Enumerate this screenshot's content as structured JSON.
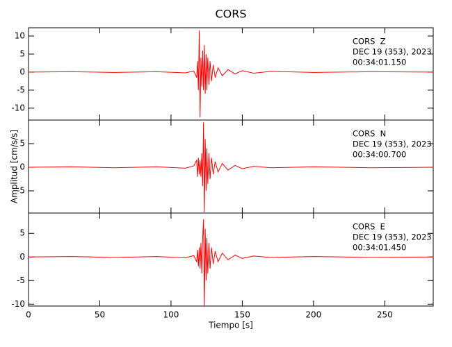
{
  "title": "CORS",
  "xlabel": "Tiempo [s]",
  "ylabel": "Amplitud [cm/s/s]",
  "chart_data": [
    {
      "type": "line",
      "annotations": [
        "CORS  Z",
        "DEC 19 (353), 2023",
        "00:34:01.150"
      ],
      "xlim": [
        0,
        284
      ],
      "xticks": [
        0,
        50,
        100,
        150,
        200,
        250
      ],
      "ylim": [
        -13.3,
        12.3
      ],
      "yticks": [
        -10,
        -5,
        0,
        5,
        10
      ],
      "series": [
        {
          "color": "#ff0000",
          "x": [
            0,
            30,
            60,
            90,
            110,
            116,
            118,
            118.6,
            119.2,
            119.8,
            120.4,
            121,
            121.6,
            122.2,
            122.8,
            123.4,
            124,
            124.6,
            125.2,
            125.8,
            126.6,
            127.4,
            128.4,
            129.6,
            131,
            133,
            136,
            140,
            145,
            150,
            158,
            170,
            200,
            240,
            284
          ],
          "values": [
            0,
            0.1,
            -0.1,
            0.1,
            -0.2,
            0.3,
            -1.5,
            3,
            -5,
            11.5,
            -12.5,
            4,
            -4,
            6,
            -5,
            7.5,
            -6,
            5,
            -5,
            4,
            -3.5,
            3,
            -2.5,
            2,
            -1.5,
            1.2,
            -1,
            0.7,
            -0.5,
            0.4,
            -0.3,
            0.2,
            -0.1,
            0.1,
            0
          ]
        }
      ]
    },
    {
      "type": "line",
      "annotations": [
        "CORS  N",
        "DEC 19 (353), 2023",
        "00:34:00.700"
      ],
      "xlim": [
        0,
        284
      ],
      "xticks": [
        0,
        50,
        100,
        150,
        200,
        250
      ],
      "ylim": [
        -9.7,
        10
      ],
      "yticks": [
        -5,
        0,
        5
      ],
      "series": [
        {
          "color": "#ff0000",
          "x": [
            0,
            30,
            60,
            90,
            110,
            116,
            118,
            118.6,
            119.2,
            119.8,
            120.4,
            121,
            121.6,
            122.2,
            122.8,
            123.4,
            124,
            124.6,
            125.2,
            125.8,
            126.6,
            127.4,
            128.4,
            129.6,
            131,
            133,
            136,
            140,
            145,
            150,
            158,
            170,
            200,
            240,
            284
          ],
          "values": [
            0,
            0.1,
            -0.1,
            0.1,
            -0.2,
            0.3,
            1.5,
            -2,
            2,
            -1.5,
            1.5,
            -2,
            3,
            -4,
            9.5,
            -9.5,
            6,
            -5,
            4,
            -3.5,
            3,
            -2.5,
            2,
            -1.5,
            1.2,
            -1,
            0.8,
            -0.6,
            0.4,
            -0.3,
            0.2,
            -0.1,
            0.1,
            -0.1,
            0
          ]
        }
      ]
    },
    {
      "type": "line",
      "annotations": [
        "CORS  E",
        "DEC 19 (353), 2023",
        "00:34:01.450"
      ],
      "xlim": [
        0,
        284
      ],
      "xticks": [
        0,
        50,
        100,
        150,
        200,
        250
      ],
      "ylim": [
        -10.4,
        9.3
      ],
      "yticks": [
        -10,
        -5,
        0,
        5
      ],
      "series": [
        {
          "color": "#ff0000",
          "x": [
            0,
            30,
            60,
            90,
            110,
            116,
            118,
            118.6,
            119.2,
            119.8,
            120.4,
            121,
            121.6,
            122.2,
            122.8,
            123.4,
            124,
            124.6,
            125.2,
            125.8,
            126.6,
            127.4,
            128.4,
            129.6,
            131,
            133,
            136,
            140,
            145,
            150,
            158,
            170,
            200,
            240,
            284
          ],
          "values": [
            0,
            0.1,
            -0.1,
            0.1,
            -0.2,
            0.3,
            -1,
            1.5,
            -2,
            2,
            -2.5,
            3,
            -3.5,
            4,
            8,
            -10.5,
            6,
            -5,
            4,
            -3.5,
            3,
            -2.5,
            2,
            -1.5,
            1.2,
            -1,
            0.8,
            -0.6,
            0.4,
            -0.3,
            0.2,
            -0.1,
            0.1,
            -0.1,
            0
          ]
        }
      ]
    }
  ]
}
